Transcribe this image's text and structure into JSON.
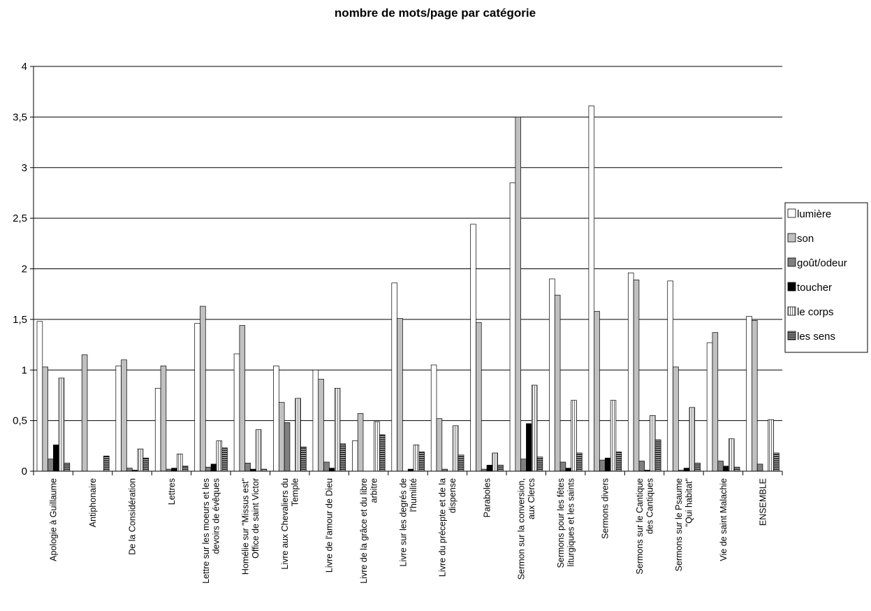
{
  "chart_data": {
    "type": "bar",
    "title": "nombre de mots/page par catégorie",
    "xlabel": "",
    "ylabel": "",
    "ylim": [
      0,
      4
    ],
    "yticks": [
      "0",
      "0,5",
      "1",
      "1,5",
      "2",
      "2,5",
      "3",
      "3,5",
      "4"
    ],
    "grid": true,
    "legend_position": "right",
    "categories": [
      [
        "Apologie à Guillaume"
      ],
      [
        "Antiphonaire"
      ],
      [
        "De la Considération"
      ],
      [
        "Lettres"
      ],
      [
        "Lettre sur les moeurs et les",
        "devoirs de évêques"
      ],
      [
        "Homélie sur \"Missus est\"",
        "Office de saint Victor"
      ],
      [
        "Livre aux Chevaliers du",
        "Temple"
      ],
      [
        "Livre de l'amour de Dieu"
      ],
      [
        "Livre de la grâce et du libre",
        "arbitre"
      ],
      [
        "Livre sur les degrés de",
        "l'humilité"
      ],
      [
        "Livre du précepte et de la",
        "dispense"
      ],
      [
        "Paraboles"
      ],
      [
        "Sermon sur la conversion,",
        "aux Clercs"
      ],
      [
        "Sermons pour les fêtes",
        "liturgiques et les saints"
      ],
      [
        "Sermons divers"
      ],
      [
        "Sermons sur le Cantique",
        "des Cantiques"
      ],
      [
        "Sermons sur le Psaume",
        "\"Qui habitat\""
      ],
      [
        "Vie de saint Malachie"
      ],
      [
        "ENSEMBLE"
      ]
    ],
    "series": [
      {
        "name": "lumière",
        "pattern": "white",
        "values": [
          1.48,
          0,
          1.04,
          0.82,
          1.46,
          1.16,
          1.04,
          1.0,
          0.3,
          1.86,
          1.05,
          2.44,
          2.85,
          1.9,
          3.61,
          1.96,
          1.88,
          1.27,
          1.53
        ]
      },
      {
        "name": "son",
        "pattern": "lightgray",
        "values": [
          1.03,
          1.15,
          1.1,
          1.04,
          1.63,
          1.44,
          0.68,
          0.91,
          0.57,
          1.51,
          0.52,
          1.47,
          3.5,
          1.74,
          1.58,
          1.89,
          1.03,
          1.37,
          1.49
        ]
      },
      {
        "name": "goût/odeur",
        "pattern": "darkgray",
        "values": [
          0.12,
          0,
          0.03,
          0.02,
          0.04,
          0.08,
          0.48,
          0.09,
          0,
          0,
          0.02,
          0.02,
          0.12,
          0.09,
          0.11,
          0.1,
          0.01,
          0.1,
          0.07
        ]
      },
      {
        "name": "toucher",
        "pattern": "black",
        "values": [
          0.26,
          0,
          0.01,
          0.03,
          0.07,
          0.02,
          0,
          0.03,
          0,
          0.02,
          0,
          0.06,
          0.47,
          0.03,
          0.13,
          0.01,
          0.03,
          0.05,
          0
        ]
      },
      {
        "name": "le corps",
        "pattern": "vlines",
        "values": [
          0.92,
          0,
          0.22,
          0.17,
          0.3,
          0.41,
          0.72,
          0.82,
          0.49,
          0.26,
          0.45,
          0.18,
          0.85,
          0.7,
          0.7,
          0.55,
          0.63,
          0.32,
          0.51
        ]
      },
      {
        "name": "les sens",
        "pattern": "hlines",
        "values": [
          0.08,
          0.15,
          0.13,
          0.05,
          0.23,
          0.02,
          0.24,
          0.27,
          0.36,
          0.19,
          0.16,
          0.06,
          0.14,
          0.18,
          0.19,
          0.31,
          0.08,
          0.04,
          0.18
        ]
      }
    ]
  }
}
